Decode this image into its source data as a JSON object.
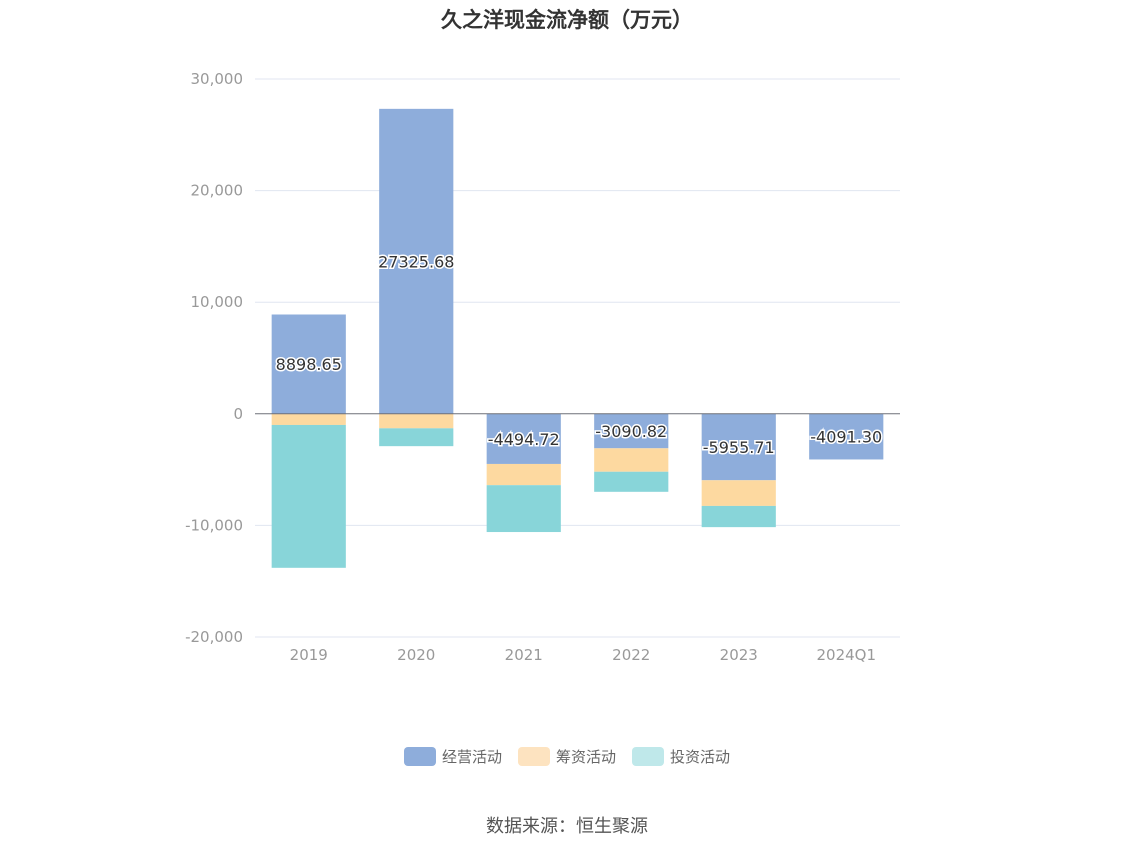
{
  "chart_data": {
    "type": "bar",
    "stacked": true,
    "title": "久之洋现金流净额（万元）",
    "categories": [
      "2019",
      "2020",
      "2021",
      "2022",
      "2023",
      "2024Q1"
    ],
    "series": [
      {
        "name": "经营活动",
        "color": "#8eaddb",
        "values": [
          8898.65,
          27325.68,
          -4494.72,
          -3090.82,
          -5955.71,
          -4091.3
        ],
        "labels": [
          "8898.65",
          "27325.68",
          "-4494.72",
          "-3090.82",
          "-5955.71",
          "-4091.30"
        ]
      },
      {
        "name": "筹资活动",
        "color": "#fdd9a0",
        "values": [
          -1000,
          -1300,
          -1900,
          -2100,
          -2300,
          0
        ]
      },
      {
        "name": "投资活动",
        "color": "#88d5d9",
        "values": [
          -12800,
          -1600,
          -4200,
          -1800,
          -1900,
          0
        ]
      }
    ],
    "ylim": [
      -20000,
      30000
    ],
    "yticks": [
      30000,
      20000,
      10000,
      0,
      -10000,
      -20000
    ],
    "ytick_labels": [
      "30,000",
      "20,000",
      "10,000",
      "0",
      "-10,000",
      "-20,000"
    ],
    "legend_position": "bottom",
    "grid": true
  },
  "legend": {
    "items": [
      {
        "label": "经营活动",
        "color": "#8eaddb"
      },
      {
        "label": "筹资活动",
        "color": "#fde3c0"
      },
      {
        "label": "投资活动",
        "color": "#bfe8ea"
      }
    ]
  },
  "source_text": "数据来源：恒生聚源"
}
